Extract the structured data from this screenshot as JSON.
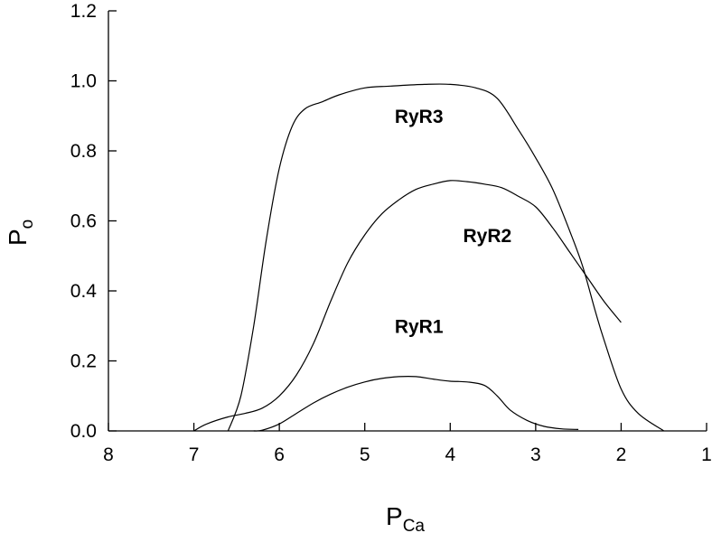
{
  "chart_data": {
    "type": "line",
    "xlabel": {
      "main": "P",
      "sub": "Ca"
    },
    "ylabel": {
      "main": "P",
      "sub": "o"
    },
    "xlim": [
      8,
      1
    ],
    "ylim": [
      0,
      1.2
    ],
    "x_ticks": [
      "8",
      "7",
      "6",
      "5",
      "4",
      "3",
      "2",
      "1"
    ],
    "y_ticks": [
      "0.0",
      "0.2",
      "0.4",
      "0.6",
      "0.8",
      "1.0",
      "1.2"
    ],
    "grid": false,
    "series": [
      {
        "name": "RyR3",
        "x": [
          6.6,
          6.45,
          6.3,
          6.15,
          6.0,
          5.85,
          5.7,
          5.5,
          5.3,
          5.0,
          4.7,
          4.3,
          4.0,
          3.7,
          3.45,
          3.2,
          3.0,
          2.8,
          2.6,
          2.45,
          2.3,
          2.2,
          2.0,
          1.8,
          1.5
        ],
        "y": [
          0.0,
          0.1,
          0.3,
          0.55,
          0.75,
          0.87,
          0.92,
          0.94,
          0.96,
          0.98,
          0.985,
          0.99,
          0.99,
          0.98,
          0.95,
          0.86,
          0.78,
          0.69,
          0.57,
          0.47,
          0.34,
          0.26,
          0.12,
          0.05,
          0.0
        ]
      },
      {
        "name": "RyR2",
        "x": [
          7.0,
          6.85,
          6.6,
          6.4,
          6.2,
          6.0,
          5.8,
          5.6,
          5.4,
          5.2,
          5.0,
          4.8,
          4.6,
          4.4,
          4.2,
          4.0,
          3.8,
          3.6,
          3.4,
          3.2,
          3.0,
          2.8,
          2.6,
          2.4,
          2.2,
          2.0
        ],
        "y": [
          0.0,
          0.02,
          0.04,
          0.05,
          0.065,
          0.1,
          0.16,
          0.25,
          0.37,
          0.48,
          0.56,
          0.62,
          0.66,
          0.69,
          0.705,
          0.715,
          0.712,
          0.705,
          0.695,
          0.67,
          0.64,
          0.58,
          0.51,
          0.44,
          0.37,
          0.31
        ]
      },
      {
        "name": "RyR1",
        "x": [
          6.3,
          6.2,
          6.0,
          5.8,
          5.6,
          5.4,
          5.2,
          5.0,
          4.8,
          4.6,
          4.4,
          4.2,
          4.0,
          3.8,
          3.6,
          3.45,
          3.3,
          3.1,
          2.9,
          2.7,
          2.5
        ],
        "y": [
          0.0,
          0.002,
          0.02,
          0.05,
          0.08,
          0.105,
          0.125,
          0.14,
          0.15,
          0.155,
          0.155,
          0.148,
          0.142,
          0.14,
          0.13,
          0.1,
          0.06,
          0.03,
          0.013,
          0.006,
          0.004
        ]
      }
    ],
    "annotations": [
      {
        "text": "RyR3",
        "x": 4.65,
        "y": 0.88
      },
      {
        "text": "RyR2",
        "x": 3.85,
        "y": 0.54
      },
      {
        "text": "RyR1",
        "x": 4.65,
        "y": 0.28
      }
    ]
  }
}
